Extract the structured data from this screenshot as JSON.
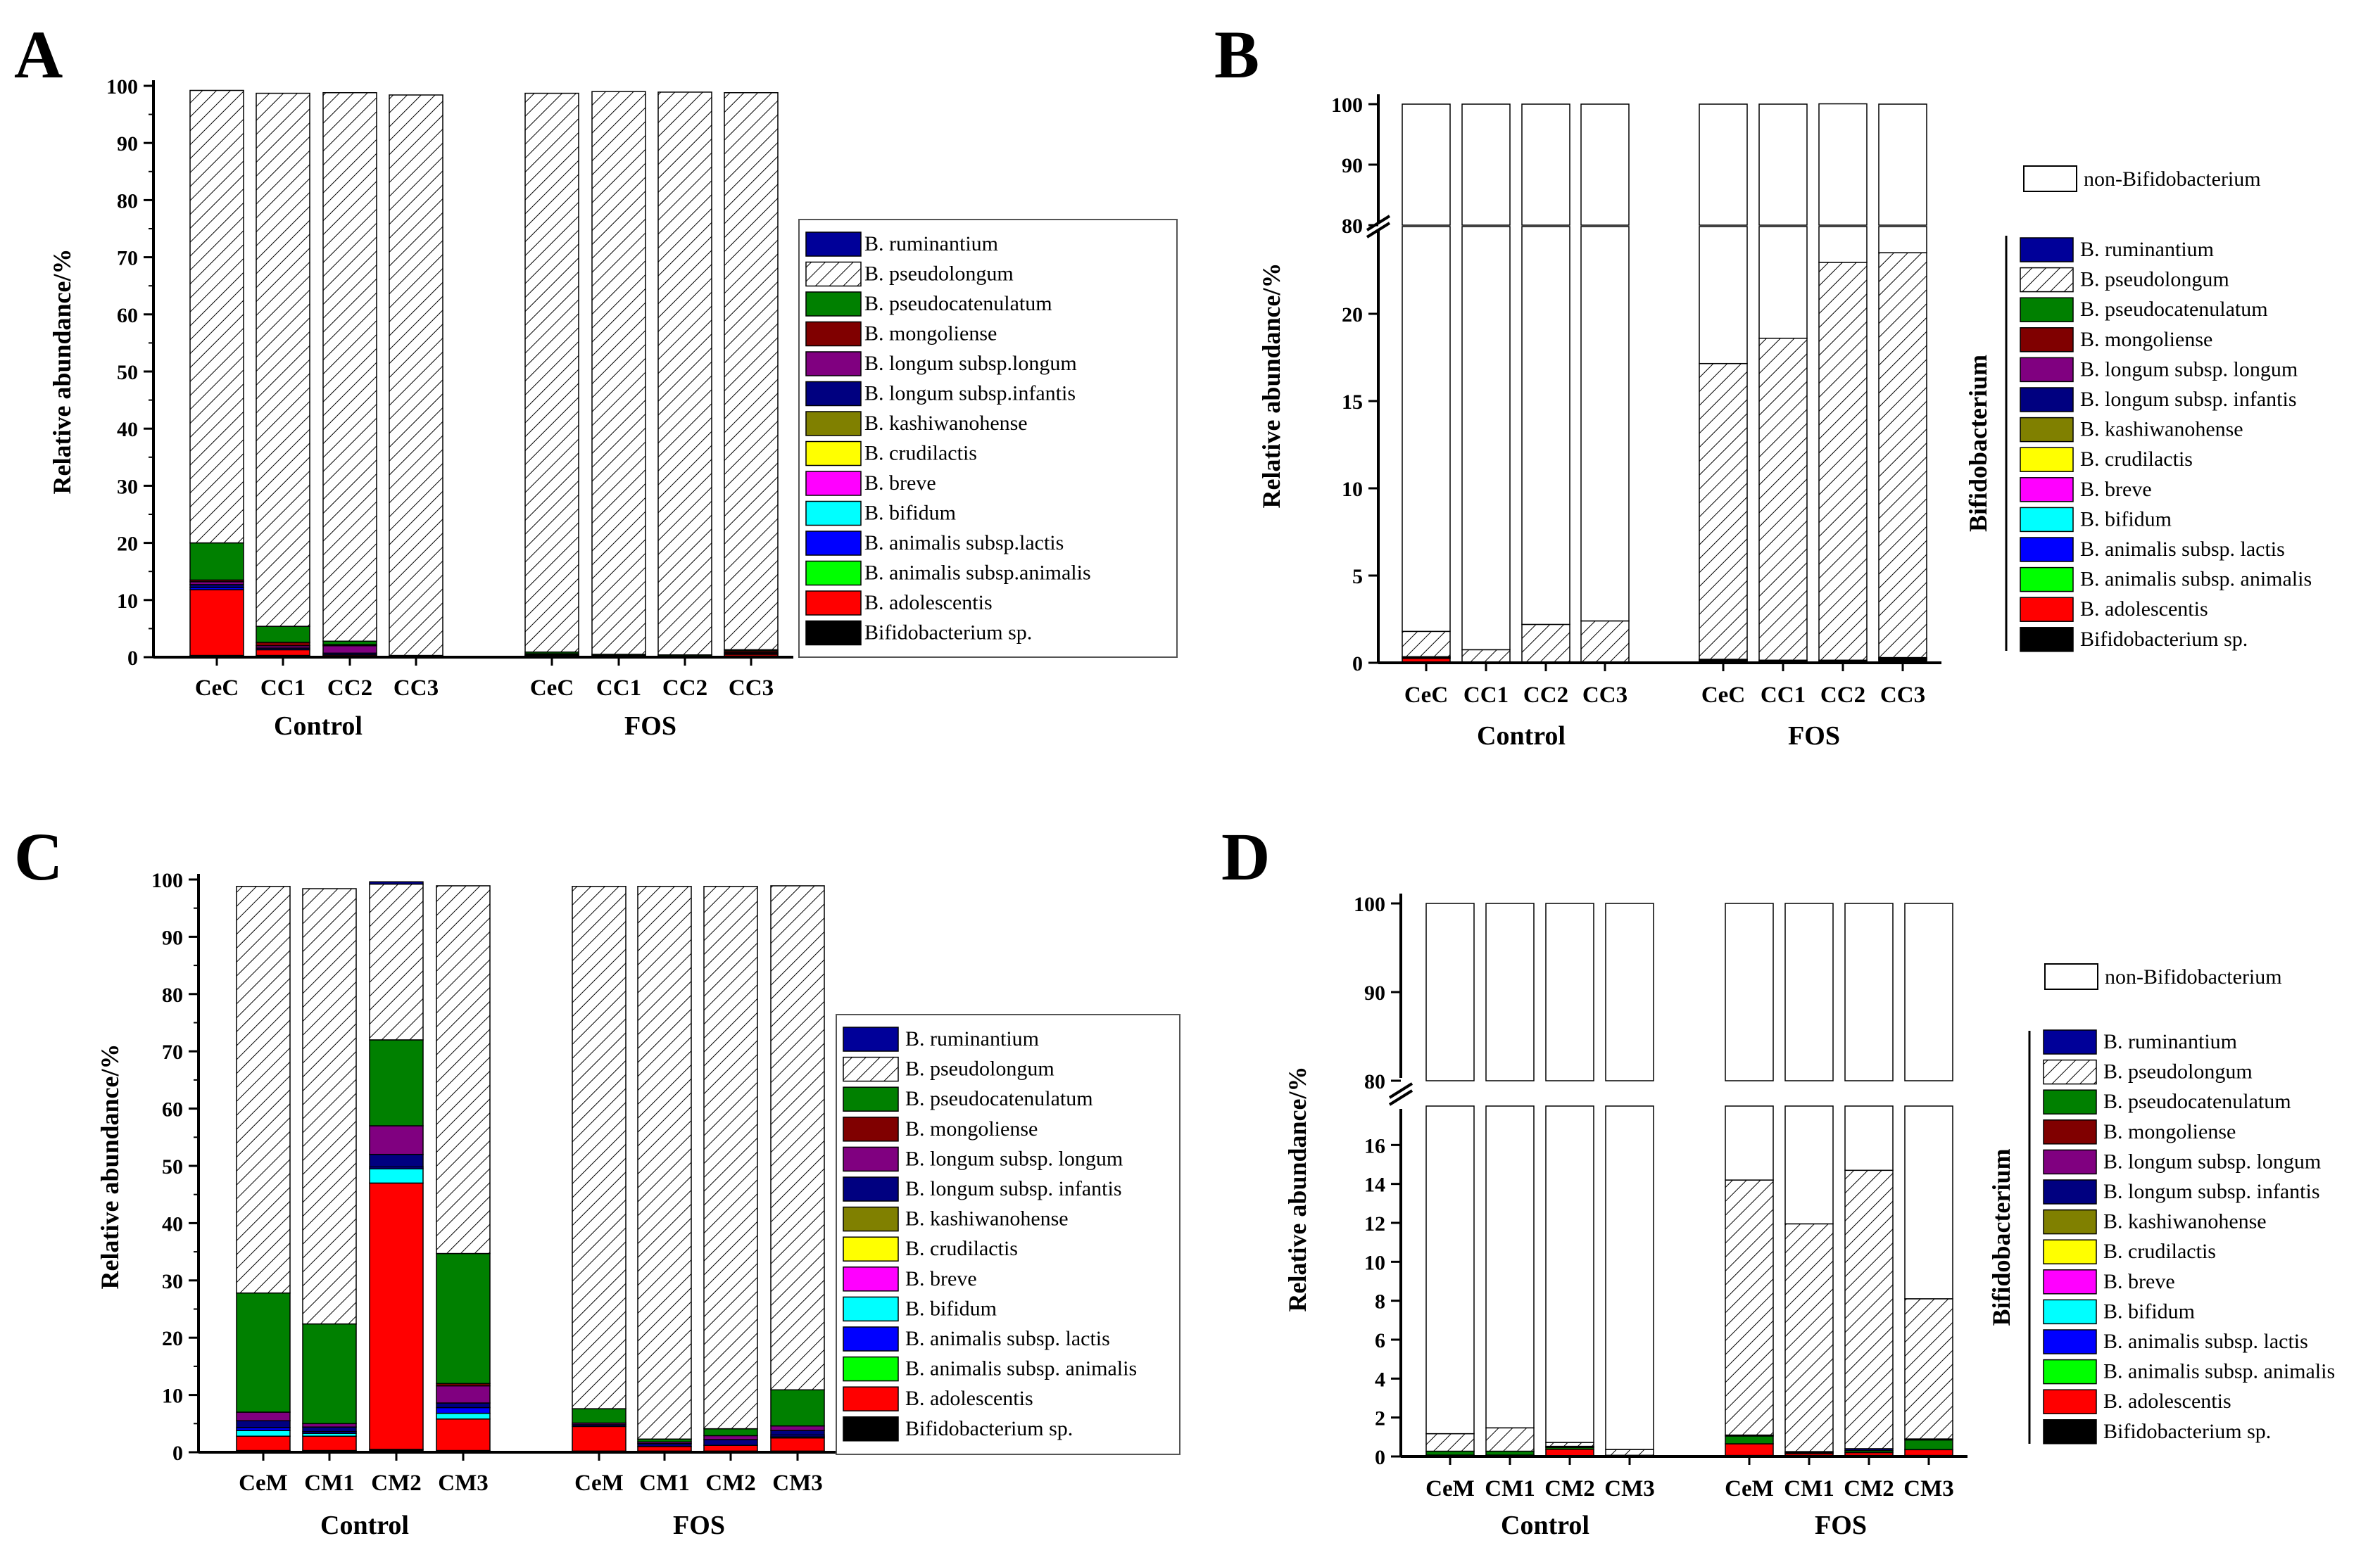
{
  "colors": {
    "Bifidobacterium sp.": "#000000",
    "B. adolescentis": "#ff0000",
    "B. animalis subsp.animalis": "#00ff00",
    "B. animalis subsp.lactis": "#0000ff",
    "B. bifidum": "#00ffff",
    "B. breve": "#ff00ff",
    "B. crudilactis": "#ffff00",
    "B. kashiwanohense": "#808000",
    "B. longum subsp.infantis": "#000080",
    "B. longum subsp.longum": "#800080",
    "B. mongoliense": "#800000",
    "B. pseudocatenulatum": "#008000",
    "B. pseudolongum": "hatch",
    "B. ruminantium": "#000099",
    "non-Bifidobacterium": "#ffffff"
  },
  "chart_data": [
    {
      "panel": "A",
      "type": "bar",
      "stacked": true,
      "ylabel": "Relative abundance/%",
      "ylim": [
        0,
        100
      ],
      "yticks": [
        0,
        10,
        20,
        30,
        40,
        50,
        60,
        70,
        80,
        90,
        100
      ],
      "groups": [
        "Control",
        "FOS"
      ],
      "categories": [
        "CeC",
        "CC1",
        "CC2",
        "CC3",
        "CeC",
        "CC1",
        "CC2",
        "CC3"
      ],
      "legend": [
        "B. ruminantium",
        "B. pseudolongum",
        "B. pseudocatenulatum",
        "B. mongoliense",
        "B. longum subsp.longum",
        "B. longum subsp.infantis",
        "B. kashiwanohense",
        "B. crudilactis",
        "B. breve",
        "B. bifidum",
        "B. animalis subsp.lactis",
        "B. animalis subsp.animalis",
        "B. adolescentis",
        "Bifidobacterium sp."
      ],
      "series": [
        {
          "name": "Bifidobacterium sp.",
          "values": [
            0.3,
            0.3,
            0.2,
            0.1,
            0.2,
            0.1,
            0.1,
            0.2
          ]
        },
        {
          "name": "B. adolescentis",
          "values": [
            11.5,
            1.0,
            0.2,
            0,
            0.1,
            0,
            0,
            0.3
          ]
        },
        {
          "name": "B. animalis subsp.lactis",
          "values": [
            0.4,
            0,
            0,
            0,
            0,
            0,
            0,
            0
          ]
        },
        {
          "name": "B. longum subsp.infantis",
          "values": [
            0.5,
            0.3,
            0.3,
            0,
            0,
            0,
            0,
            0.1
          ]
        },
        {
          "name": "B. longum subsp.longum",
          "values": [
            0.5,
            0.4,
            1.3,
            0,
            0.1,
            0,
            0,
            0.2
          ]
        },
        {
          "name": "B. mongoliense",
          "values": [
            0.3,
            0.6,
            0.2,
            0,
            0.2,
            0.2,
            0.1,
            0.3
          ]
        },
        {
          "name": "B. pseudocatenulatum",
          "values": [
            6.5,
            2.8,
            0.6,
            0.2,
            0.3,
            0.2,
            0.2,
            0.2
          ]
        },
        {
          "name": "B. pseudolongum",
          "values": [
            79.2,
            93.3,
            96.0,
            98.1,
            97.8,
            98.5,
            98.5,
            97.5
          ]
        }
      ]
    },
    {
      "panel": "B",
      "type": "bar",
      "stacked": true,
      "broken_axis": true,
      "ylabel": "Relative abundance/%",
      "ylim_lower": [
        0,
        25
      ],
      "ylim_upper": [
        80,
        100
      ],
      "yticks_lower": [
        0,
        5,
        10,
        15,
        20
      ],
      "yticks_upper": [
        80,
        90,
        100
      ],
      "groups": [
        "Control",
        "FOS"
      ],
      "categories": [
        "CeC",
        "CC1",
        "CC2",
        "CC3",
        "CeC",
        "CC1",
        "CC2",
        "CC3"
      ],
      "bracket_label": "Bifidobacterium",
      "legend_top": "non-Bifidobacterium",
      "legend": [
        "B. ruminantium",
        "B. pseudolongum",
        "B. pseudocatenulatum",
        "B. mongoliense",
        "B. longum subsp. longum",
        "B. longum subsp. infantis",
        "B. kashiwanohense",
        "B. crudilactis",
        "B. breve",
        "B. bifidum",
        "B. animalis subsp. lactis",
        "B. animalis subsp. animalis",
        "B. adolescentis",
        "Bifidobacterium sp."
      ],
      "series": [
        {
          "name": "Bifidobacterium sp.",
          "values": [
            0.05,
            0.02,
            0.02,
            0.02,
            0.1,
            0.05,
            0.05,
            0.15
          ]
        },
        {
          "name": "B. adolescentis",
          "values": [
            0.2,
            0.03,
            0,
            0,
            0,
            0,
            0,
            0.05
          ]
        },
        {
          "name": "B. mongoliense",
          "values": [
            0.05,
            0,
            0,
            0,
            0.05,
            0.05,
            0.05,
            0.05
          ]
        },
        {
          "name": "B. pseudocatenulatum",
          "values": [
            0.05,
            0,
            0,
            0,
            0.05,
            0.05,
            0.05,
            0.05
          ]
        },
        {
          "name": "B. pseudolongum",
          "values": [
            1.45,
            0.7,
            2.18,
            2.38,
            16.95,
            18.45,
            22.8,
            23.2
          ]
        },
        {
          "name": "non-Bifidobacterium",
          "values": [
            98.2,
            99.25,
            97.8,
            97.6,
            82.85,
            81.4,
            77.1,
            76.5
          ]
        }
      ]
    },
    {
      "panel": "C",
      "type": "bar",
      "stacked": true,
      "ylabel": "Relative abundance/%",
      "ylim": [
        0,
        100
      ],
      "yticks": [
        0,
        10,
        20,
        30,
        40,
        50,
        60,
        70,
        80,
        90,
        100
      ],
      "groups": [
        "Control",
        "FOS"
      ],
      "categories": [
        "CeM",
        "CM1",
        "CM2",
        "CM3",
        "CeM",
        "CM1",
        "CM2",
        "CM3"
      ],
      "legend": [
        "B. ruminantium",
        "B. pseudolongum",
        "B. pseudocatenulatum",
        "B. mongoliense",
        "B. longum subsp. longum",
        "B. longum subsp. infantis",
        "B. kashiwanohense",
        "B. crudilactis",
        "B. breve",
        "B. bifidum",
        "B. animalis subsp. lactis",
        "B. animalis subsp. animalis",
        "B. adolescentis",
        "Bifidobacterium sp."
      ],
      "series": [
        {
          "name": "Bifidobacterium sp.",
          "values": [
            0.3,
            0.3,
            0.5,
            0.3,
            0.2,
            0.2,
            0.2,
            0.2
          ]
        },
        {
          "name": "B. adolescentis",
          "values": [
            2.5,
            2.5,
            46.5,
            5.5,
            4.3,
            0.8,
            1.0,
            2.3
          ]
        },
        {
          "name": "B. bifidum",
          "values": [
            1.0,
            0.5,
            2.5,
            1.0,
            0,
            0,
            0,
            0.2
          ]
        },
        {
          "name": "B. animalis subsp. lactis",
          "values": [
            0.5,
            0.3,
            0.3,
            1.0,
            0,
            0,
            0,
            0.3
          ]
        },
        {
          "name": "B. longum subsp. infantis",
          "values": [
            1.2,
            0.8,
            2.2,
            0.8,
            0.3,
            0.5,
            1.0,
            0.8
          ]
        },
        {
          "name": "B. longum subsp. longum",
          "values": [
            1.5,
            0.6,
            5.0,
            3.0,
            0.3,
            0.3,
            0.7,
            0.8
          ]
        },
        {
          "name": "B. mongoliense",
          "values": [
            0,
            0,
            0,
            0.4,
            0,
            0,
            0,
            0
          ]
        },
        {
          "name": "B. pseudocatenulatum",
          "values": [
            20.8,
            17.4,
            15.0,
            22.7,
            2.5,
            0.5,
            1.2,
            6.3
          ]
        },
        {
          "name": "B. pseudolongum",
          "values": [
            71.0,
            76.0,
            27.2,
            64.2,
            91.2,
            96.5,
            94.7,
            88.0
          ]
        },
        {
          "name": "B. ruminantium",
          "values": [
            0,
            0,
            0.4,
            0,
            0,
            0,
            0,
            0
          ]
        }
      ]
    },
    {
      "panel": "D",
      "type": "bar",
      "stacked": true,
      "broken_axis": true,
      "ylabel": "Relative abundance/%",
      "ylim_lower": [
        0,
        18
      ],
      "ylim_upper": [
        80,
        100
      ],
      "yticks_lower": [
        0,
        2,
        4,
        6,
        8,
        10,
        12,
        14,
        16
      ],
      "yticks_upper": [
        80,
        90,
        100
      ],
      "groups": [
        "Control",
        "FOS"
      ],
      "categories": [
        "CeM",
        "CM1",
        "CM2",
        "CM3",
        "CeM",
        "CM1",
        "CM2",
        "CM3"
      ],
      "bracket_label": "Bifidobacterium",
      "legend_top": "non-Bifidobacterium",
      "legend": [
        "B. ruminantium",
        "B. pseudolongum",
        "B. pseudocatenulatum",
        "B. mongoliense",
        "B. longum subsp. longum",
        "B. longum subsp. infantis",
        "B. kashiwanohense",
        "B. crudilactis",
        "B. breve",
        "B. bifidum",
        "B. animalis subsp. lactis",
        "B. animalis subsp. animalis",
        "B. adolescentis",
        "Bifidobacterium sp."
      ],
      "series": [
        {
          "name": "Bifidobacterium sp.",
          "values": [
            0.02,
            0.02,
            0.02,
            0.02,
            0.05,
            0.05,
            0.05,
            0.05
          ]
        },
        {
          "name": "B. adolescentis",
          "values": [
            0.05,
            0.05,
            0.35,
            0.02,
            0.6,
            0.1,
            0.15,
            0.3
          ]
        },
        {
          "name": "B. pseudocatenulatum",
          "values": [
            0.2,
            0.2,
            0.1,
            0.02,
            0.4,
            0.05,
            0.1,
            0.5
          ]
        },
        {
          "name": "B. longum subsp. infantis",
          "values": [
            0,
            0,
            0.05,
            0,
            0.05,
            0.05,
            0.1,
            0.05
          ]
        },
        {
          "name": "B. pseudolongum",
          "values": [
            0.9,
            1.2,
            0.2,
            0.3,
            13.1,
            11.7,
            14.3,
            7.2
          ]
        },
        {
          "name": "non-Bifidobacterium",
          "values": [
            98.83,
            98.53,
            99.28,
            99.64,
            85.8,
            88.05,
            85.3,
            91.9
          ]
        }
      ]
    }
  ],
  "panels": {
    "A": {
      "label": "A"
    },
    "B": {
      "label": "B"
    },
    "C": {
      "label": "C"
    },
    "D": {
      "label": "D"
    }
  }
}
